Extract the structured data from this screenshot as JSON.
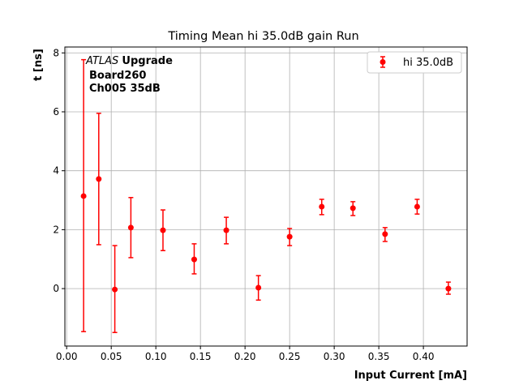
{
  "chart_data": {
    "type": "scatter",
    "title": "Timing Mean hi 35.0dB gain Run",
    "xlabel": "Input Current [mA]",
    "ylabel": "t [ns]",
    "xlim": [
      -0.002,
      0.449
    ],
    "ylim": [
      -1.95,
      8.2
    ],
    "grid": true,
    "xticks": [
      0.0,
      0.05,
      0.1,
      0.15,
      0.2,
      0.25,
      0.3,
      0.35,
      0.4
    ],
    "xtick_labels": [
      "0.00",
      "0.05",
      "0.10",
      "0.15",
      "0.20",
      "0.25",
      "0.30",
      "0.35",
      "0.40"
    ],
    "yticks": [
      0,
      2,
      4,
      6,
      8
    ],
    "ytick_labels": [
      "0",
      "2",
      "4",
      "6",
      "8"
    ],
    "legend": {
      "position": "top-right",
      "entries": [
        "hi 35.0dB"
      ]
    },
    "annotation": {
      "italic": "ATLAS",
      "bold": "Upgrade",
      "lines": [
        "Board260",
        "Ch005 35dB"
      ]
    },
    "series": [
      {
        "name": "hi 35.0dB",
        "color": "#ff0000",
        "x": [
          0.019,
          0.036,
          0.054,
          0.072,
          0.108,
          0.143,
          0.179,
          0.215,
          0.25,
          0.286,
          0.321,
          0.357,
          0.393,
          0.428
        ],
        "y": [
          3.14,
          3.72,
          -0.03,
          2.07,
          1.98,
          0.99,
          1.98,
          0.03,
          1.76,
          2.78,
          2.73,
          1.85,
          2.78,
          0.0
        ],
        "yerr_high": [
          7.77,
          5.95,
          1.46,
          3.09,
          2.67,
          1.52,
          2.42,
          0.44,
          2.04,
          3.03,
          2.95,
          2.07,
          3.03,
          0.22
        ],
        "yerr_low": [
          -1.46,
          1.49,
          -1.49,
          1.05,
          1.29,
          0.5,
          1.52,
          -0.39,
          1.46,
          2.51,
          2.48,
          1.6,
          2.53,
          -0.19
        ]
      }
    ]
  }
}
